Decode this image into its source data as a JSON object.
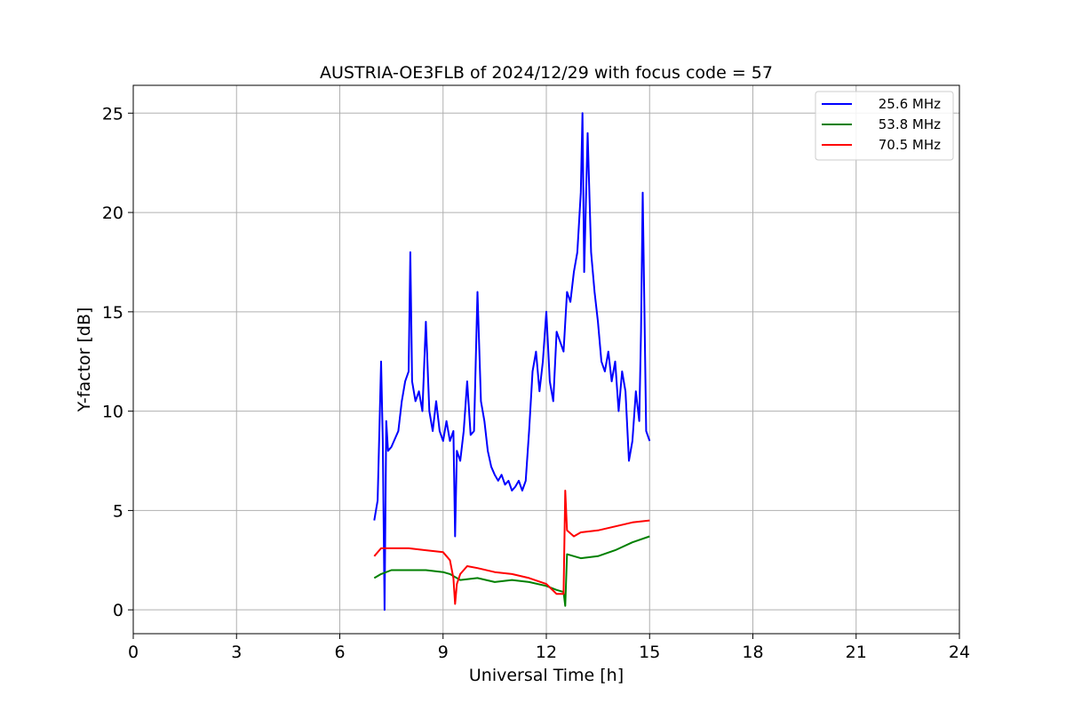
{
  "chart_data": {
    "type": "line",
    "title": "AUSTRIA-OE3FLB of 2024/12/29 with focus code = 57",
    "xlabel": "Universal Time [h]",
    "ylabel": "Y-factor [dB]",
    "xlim": [
      0,
      24
    ],
    "ylim": [
      -1.2,
      26.4
    ],
    "xticks": [
      0,
      3,
      6,
      9,
      12,
      15,
      18,
      21,
      24
    ],
    "yticks": [
      0,
      5,
      10,
      15,
      20,
      25
    ],
    "grid": true,
    "legend_position": "top-right",
    "series": [
      {
        "name": "25.6 MHz",
        "color": "#0000ff",
        "x": [
          7.0,
          7.1,
          7.2,
          7.25,
          7.3,
          7.35,
          7.4,
          7.5,
          7.6,
          7.7,
          7.8,
          7.9,
          8.0,
          8.05,
          8.1,
          8.2,
          8.3,
          8.4,
          8.5,
          8.6,
          8.7,
          8.8,
          8.9,
          9.0,
          9.1,
          9.2,
          9.3,
          9.35,
          9.4,
          9.5,
          9.6,
          9.7,
          9.8,
          9.9,
          10.0,
          10.1,
          10.2,
          10.3,
          10.4,
          10.5,
          10.6,
          10.7,
          10.8,
          10.9,
          11.0,
          11.1,
          11.2,
          11.3,
          11.4,
          11.5,
          11.6,
          11.7,
          11.8,
          11.9,
          12.0,
          12.1,
          12.2,
          12.3,
          12.4,
          12.5,
          12.6,
          12.7,
          12.8,
          12.9,
          13.0,
          13.05,
          13.1,
          13.2,
          13.3,
          13.4,
          13.5,
          13.6,
          13.7,
          13.8,
          13.9,
          14.0,
          14.1,
          14.2,
          14.3,
          14.4,
          14.5,
          14.6,
          14.7,
          14.75,
          14.8,
          14.9,
          15.0
        ],
        "y": [
          4.5,
          5.5,
          12.5,
          8.5,
          0.0,
          9.5,
          8.0,
          8.2,
          8.6,
          9.0,
          10.5,
          11.5,
          12.0,
          18.0,
          11.5,
          10.5,
          11.0,
          10.0,
          14.5,
          10.0,
          9.0,
          10.5,
          9.0,
          8.5,
          9.5,
          8.5,
          9.0,
          3.7,
          8.0,
          7.5,
          9.0,
          11.5,
          8.8,
          9.0,
          16.0,
          10.5,
          9.5,
          8.0,
          7.2,
          6.8,
          6.5,
          6.8,
          6.3,
          6.5,
          6.0,
          6.2,
          6.5,
          6.0,
          6.5,
          9.0,
          12.0,
          13.0,
          11.0,
          12.5,
          15.0,
          11.5,
          10.5,
          14.0,
          13.5,
          13.0,
          16.0,
          15.5,
          17.0,
          18.0,
          21.0,
          25.0,
          17.0,
          24.0,
          18.0,
          16.0,
          14.5,
          12.5,
          12.0,
          13.0,
          11.5,
          12.5,
          10.0,
          12.0,
          11.0,
          7.5,
          8.5,
          11.0,
          9.5,
          14.0,
          21.0,
          9.0,
          8.5
        ]
      },
      {
        "name": "53.8 MHz",
        "color": "#008000",
        "x": [
          7.0,
          7.2,
          7.5,
          8.0,
          8.5,
          9.0,
          9.2,
          9.5,
          10.0,
          10.5,
          11.0,
          11.5,
          12.0,
          12.3,
          12.5,
          12.55,
          12.6,
          12.8,
          13.0,
          13.5,
          14.0,
          14.5,
          15.0
        ],
        "y": [
          1.6,
          1.8,
          2.0,
          2.0,
          2.0,
          1.9,
          1.8,
          1.5,
          1.6,
          1.4,
          1.5,
          1.4,
          1.2,
          1.0,
          0.9,
          0.2,
          2.8,
          2.7,
          2.6,
          2.7,
          3.0,
          3.4,
          3.7
        ]
      },
      {
        "name": "70.5 MHz",
        "color": "#ff0000",
        "x": [
          7.0,
          7.2,
          7.5,
          8.0,
          8.5,
          9.0,
          9.2,
          9.3,
          9.35,
          9.4,
          9.5,
          9.7,
          10.0,
          10.5,
          11.0,
          11.5,
          12.0,
          12.3,
          12.5,
          12.55,
          12.6,
          12.8,
          13.0,
          13.5,
          14.0,
          14.5,
          15.0
        ],
        "y": [
          2.7,
          3.1,
          3.1,
          3.1,
          3.0,
          2.9,
          2.5,
          1.6,
          0.3,
          1.3,
          1.8,
          2.2,
          2.1,
          1.9,
          1.8,
          1.6,
          1.3,
          0.8,
          0.8,
          6.0,
          4.0,
          3.7,
          3.9,
          4.0,
          4.2,
          4.4,
          4.5
        ]
      }
    ]
  }
}
